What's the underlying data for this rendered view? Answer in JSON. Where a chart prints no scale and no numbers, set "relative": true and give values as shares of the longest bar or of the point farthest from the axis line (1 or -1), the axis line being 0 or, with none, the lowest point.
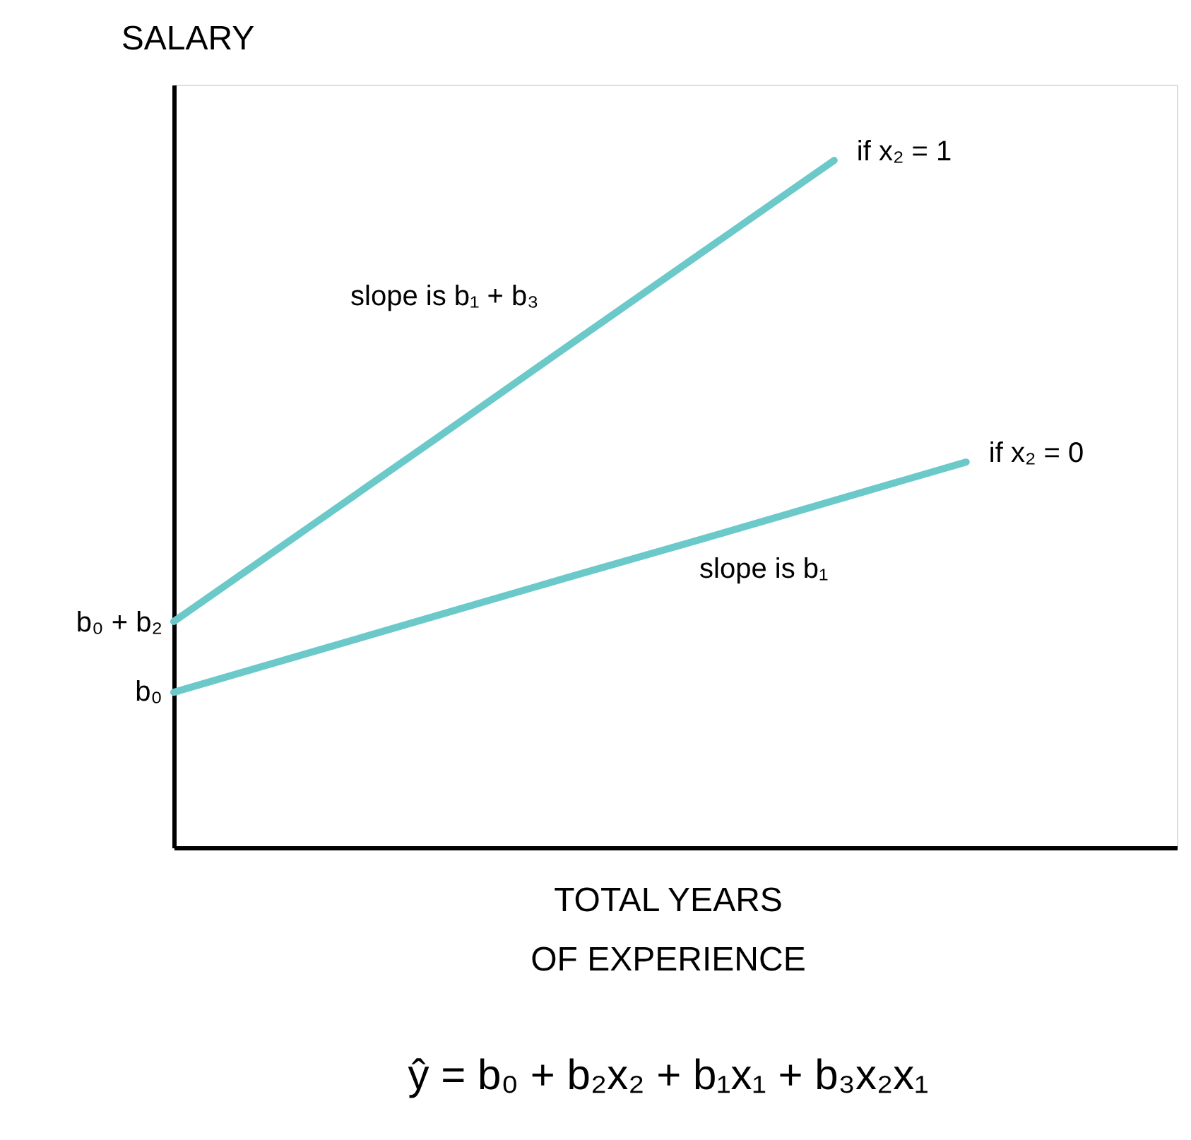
{
  "chart_data": {
    "type": "line",
    "relative": true,
    "ylabel": "SALARY",
    "xlabel": "TOTAL YEARS\nOF EXPERIENCE",
    "categories": [
      null,
      null,
      null,
      null,
      null,
      null,
      null
    ],
    "series": [
      {
        "name": "if x₂ = 1",
        "color": "#6cc9c9",
        "values": [
          0.329,
          0.463,
          0.597,
          0.732,
          0.866,
          1.0,
          null
        ]
      },
      {
        "name": "if x₂ = 0",
        "color": "#6cc9c9",
        "values": [
          0.226,
          0.282,
          0.338,
          0.394,
          0.449,
          0.505,
          0.561
        ]
      }
    ],
    "annotations": [
      "slope is b₁ + b₃",
      "slope is b₁",
      "b₀ + b₂",
      "b₀",
      "ŷ = b₀ + b₂x₂ + b₁x₁ + b₃x₂x₁"
    ],
    "legend": false,
    "marker": "none",
    "line_style": "solid"
  }
}
